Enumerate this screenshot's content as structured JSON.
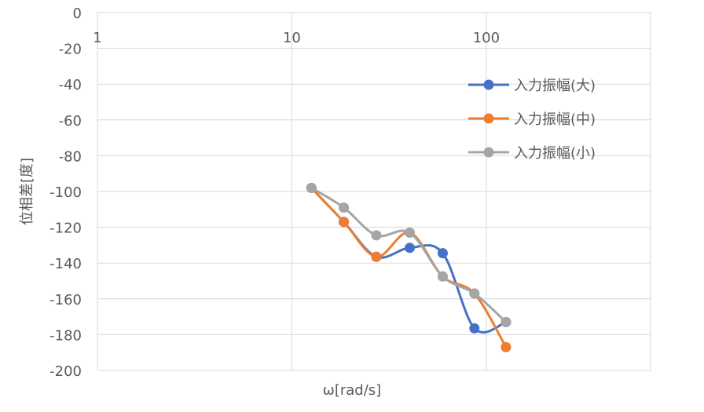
{
  "chart_data": {
    "type": "line",
    "title": "",
    "xlabel": "ω[rad/s]",
    "ylabel": "位相差[度]",
    "x_scale": "log",
    "xlim": [
      1,
      700
    ],
    "ylim": [
      -200,
      0
    ],
    "x_ticks": [
      1,
      10,
      100
    ],
    "x_tick_labels": [
      "1",
      "10",
      "100"
    ],
    "y_ticks": [
      0,
      -20,
      -40,
      -60,
      -80,
      -100,
      -120,
      -140,
      -160,
      -180,
      -200
    ],
    "y_tick_labels": [
      "0",
      "-20",
      "-40",
      "-60",
      "-80",
      "-100",
      "-120",
      "-140",
      "-160",
      "-180",
      "-200"
    ],
    "grid": true,
    "legend_position": "right",
    "smooth": true,
    "series": [
      {
        "name": "入力振幅(大)",
        "color": "#4472C4",
        "x": [
          12.6,
          18.5,
          27.2,
          40.4,
          59.7,
          86.9,
          126.3
        ],
        "y": [
          -98,
          -117,
          -136.5,
          -131.5,
          -134.5,
          -176.5,
          -173
        ]
      },
      {
        "name": "入力振幅(中)",
        "color": "#ED7D31",
        "x": [
          12.6,
          18.5,
          27.2,
          40.4,
          59.7,
          86.9,
          126.3
        ],
        "y": [
          -98,
          -117,
          -136.5,
          -123,
          -147.5,
          -157,
          -187
        ]
      },
      {
        "name": "入力振幅(小)",
        "color": "#A5A5A5",
        "x": [
          12.6,
          18.5,
          27.2,
          40.4,
          59.7,
          86.9,
          126.3
        ],
        "y": [
          -98,
          -109,
          -124.5,
          -123,
          -147.5,
          -157,
          -173
        ]
      }
    ]
  }
}
